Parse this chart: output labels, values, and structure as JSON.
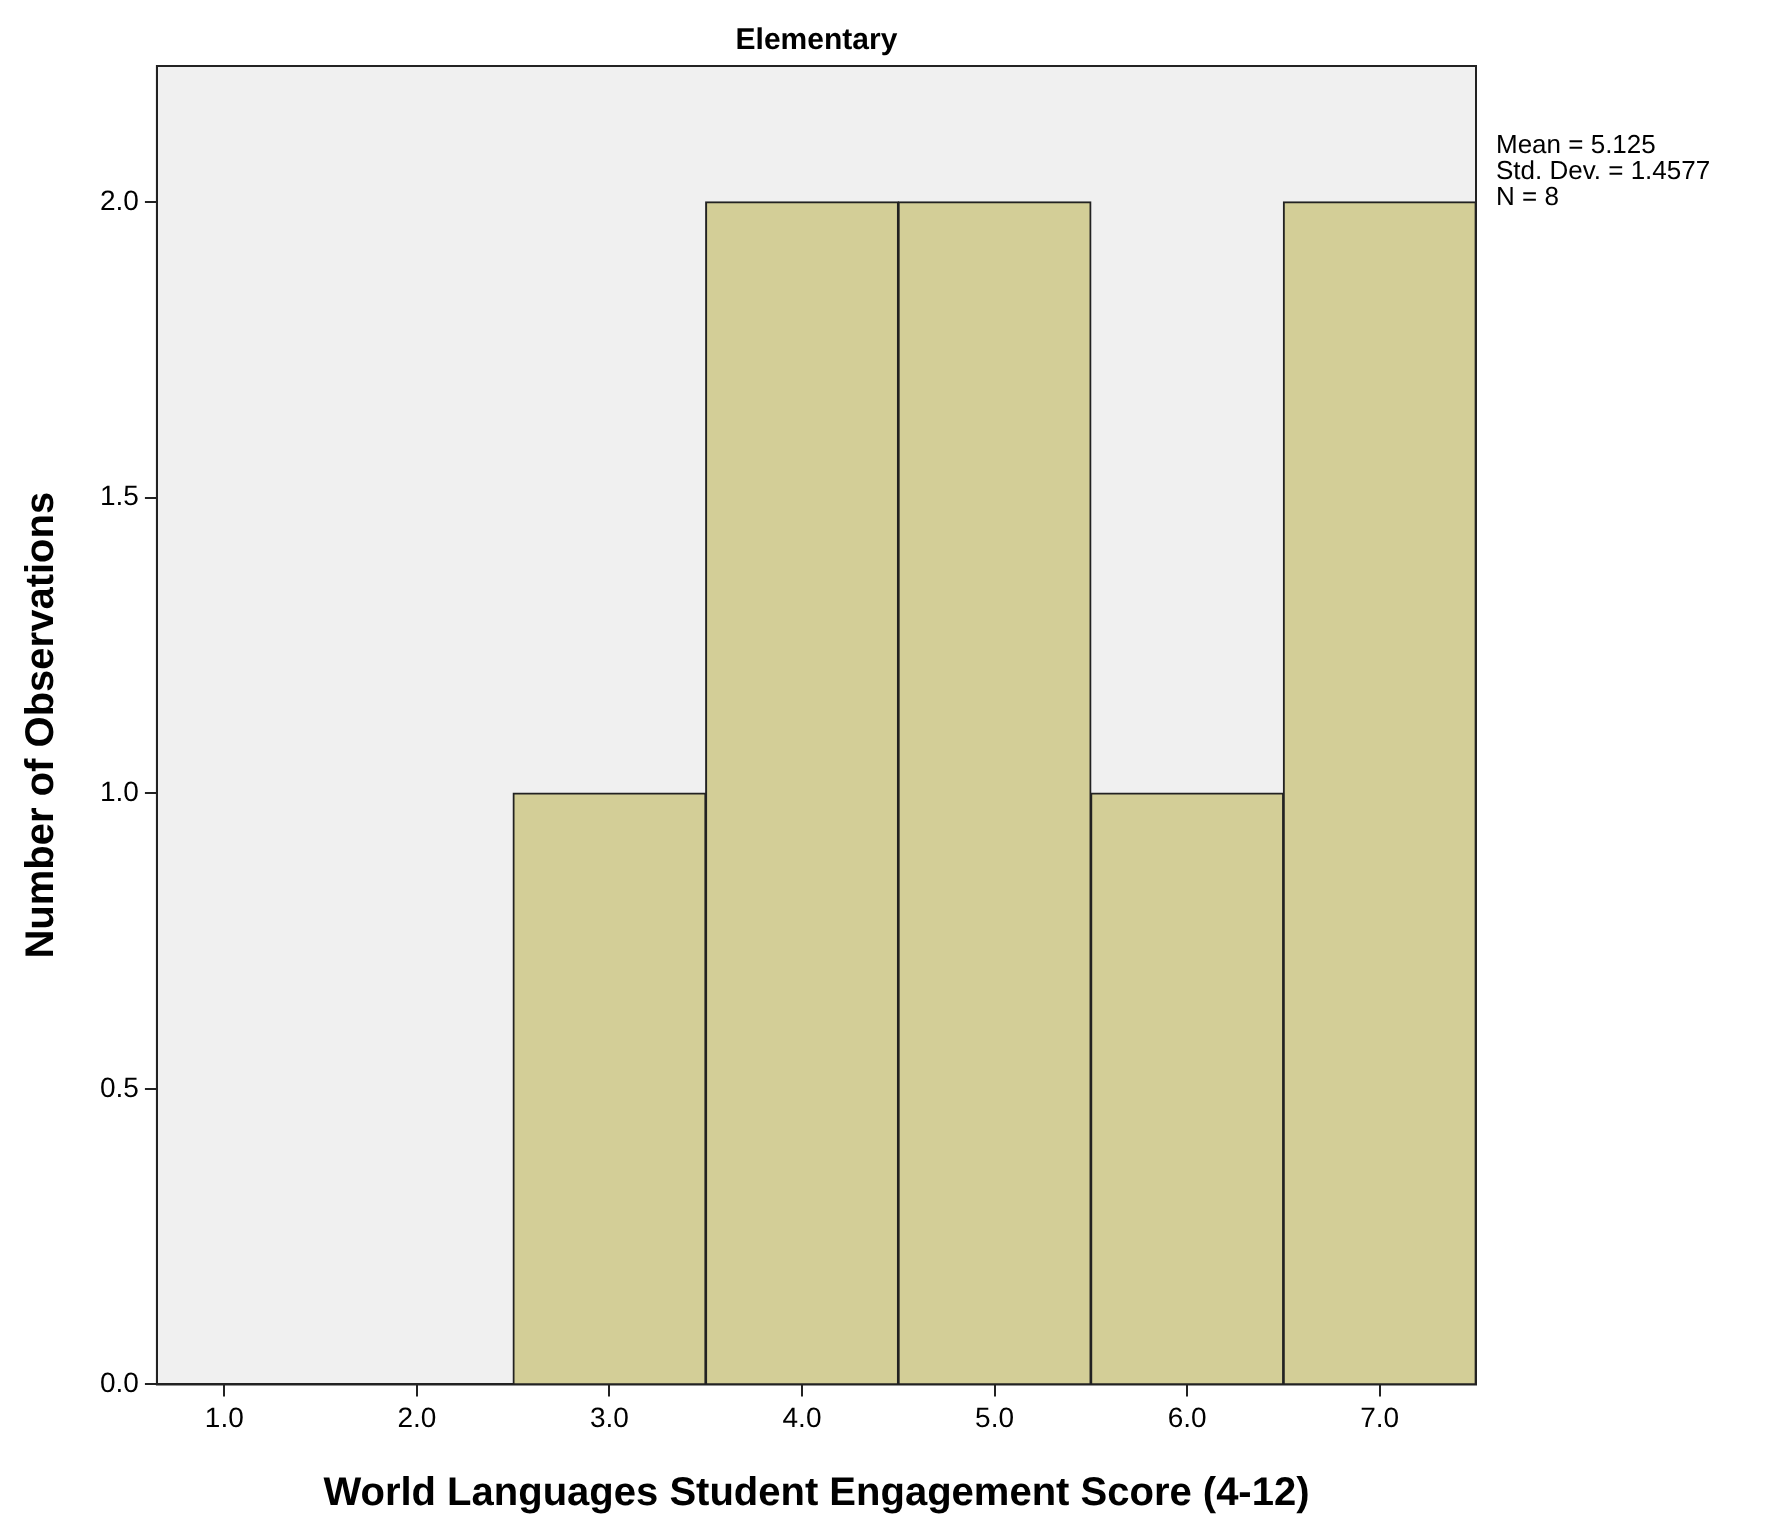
{
  "chart_data": {
    "type": "histogram",
    "title": "Elementary",
    "xlabel": "World Languages Student Engagement Score (4-12)",
    "ylabel": "Number of Observations",
    "bins": [
      2.5,
      3.5,
      4.5,
      5.5,
      6.5,
      7.5
    ],
    "values": [
      1,
      2,
      2,
      1,
      2
    ],
    "color": "#d3ce97",
    "xlim": [
      0.65,
      7.5
    ],
    "xticks": [
      {
        "value": 1,
        "label": "1.0"
      },
      {
        "value": 2,
        "label": "2.0"
      },
      {
        "value": 3,
        "label": "3.0"
      },
      {
        "value": 4,
        "label": "4.0"
      },
      {
        "value": 5,
        "label": "5.0"
      },
      {
        "value": 6,
        "label": "6.0"
      },
      {
        "value": 7,
        "label": "7.0"
      }
    ],
    "ylim": [
      0,
      2.23
    ],
    "yticks": [
      {
        "value": 0,
        "label": "0.0"
      },
      {
        "value": 0.5,
        "label": "0.5"
      },
      {
        "value": 1,
        "label": "1.0"
      },
      {
        "value": 1.5,
        "label": "1.5"
      },
      {
        "value": 2,
        "label": "2.0"
      }
    ],
    "grid": false,
    "legend": false,
    "annotations": [
      "Mean = 5.125",
      "Std. Dev. = 1.4577",
      "N = 8"
    ]
  }
}
